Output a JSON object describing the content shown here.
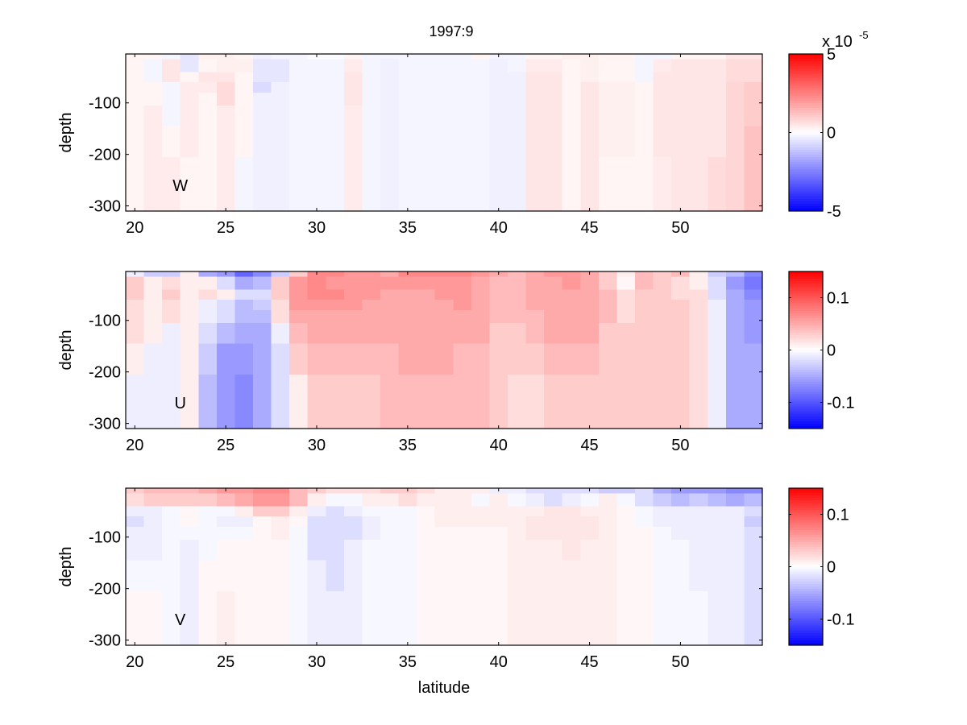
{
  "chart_data": {
    "type": "heatmap",
    "title": "1997:9",
    "xlabel": "latitude",
    "latitudes": [
      20,
      21,
      22,
      23,
      24,
      25,
      26,
      27,
      28,
      29,
      30,
      31,
      32,
      33,
      34,
      35,
      36,
      37,
      38,
      39,
      40,
      41,
      42,
      43,
      44,
      45,
      46,
      47,
      48,
      49,
      50,
      51,
      52,
      53,
      54
    ],
    "depth_edges": [
      -5,
      -15,
      -40,
      -60,
      -80,
      -105,
      -145,
      -205,
      -310
    ],
    "colormap": {
      "negative": "#0000ff",
      "zero": "#ffffff",
      "positive": "#ff0000"
    },
    "panels": [
      {
        "name": "W",
        "ylabel": "depth",
        "annotation": "W",
        "xlim": [
          19.5,
          54.5
        ],
        "ylim": [
          -310,
          -5
        ],
        "xticks": [
          "20",
          "25",
          "30",
          "35",
          "40",
          "45",
          "50"
        ],
        "yticks": [
          "-100",
          "-200",
          "-300"
        ],
        "clim": [
          -5,
          5
        ],
        "colorbar_ticks": [
          "5",
          "0",
          "-5"
        ],
        "colorbar_multiplier": "x 10",
        "colorbar_exponent": "-5",
        "values": [
          [
            0.2,
            0.2,
            -0.2,
            -0.5,
            0.3,
            0.3,
            0.2,
            -0.3,
            -0.2,
            -0.2,
            -0.1,
            -0.1,
            0.2,
            -0.2,
            -0.2,
            -0.2,
            -0.2,
            -0.2,
            -0.2,
            0.2,
            -0.2,
            -0.2,
            0.2,
            0.2,
            0.3,
            0.3,
            0.2,
            0.2,
            -0.2,
            -0.2,
            0.2,
            0.2,
            0.2,
            0.5,
            0.5
          ],
          [
            0.2,
            -0.2,
            0.5,
            -0.5,
            0.2,
            0.3,
            0.3,
            -0.5,
            -0.5,
            -0.2,
            -0.2,
            -0.2,
            0.4,
            -0.2,
            -0.3,
            -0.2,
            -0.2,
            -0.2,
            -0.2,
            -0.2,
            -0.3,
            -0.2,
            0.4,
            0.4,
            0.2,
            0.3,
            0.2,
            0.2,
            -0.2,
            0.4,
            0.5,
            0.5,
            0.5,
            0.7,
            0.7
          ],
          [
            0.2,
            -0.2,
            0.5,
            0.2,
            0.5,
            0.5,
            0.2,
            -0.5,
            -0.5,
            -0.2,
            -0.2,
            -0.2,
            0.5,
            -0.2,
            -0.3,
            -0.2,
            -0.2,
            -0.2,
            -0.2,
            -0.2,
            -0.3,
            -0.3,
            0.5,
            0.5,
            0.2,
            0.3,
            0.2,
            0.2,
            -0.2,
            0.5,
            0.5,
            0.5,
            0.5,
            0.7,
            0.7
          ],
          [
            0.2,
            0.2,
            -0.2,
            0.4,
            0.4,
            0.7,
            0.2,
            -0.7,
            -0.3,
            -0.2,
            -0.2,
            -0.2,
            0.5,
            -0.2,
            -0.3,
            -0.2,
            -0.2,
            -0.2,
            -0.2,
            -0.2,
            -0.3,
            -0.3,
            0.5,
            0.5,
            0.2,
            0.5,
            0.3,
            0.3,
            0.2,
            0.5,
            0.5,
            0.5,
            0.5,
            0.8,
            1.0
          ],
          [
            0.2,
            0.2,
            -0.2,
            0.4,
            0.2,
            0.7,
            0.2,
            -0.3,
            -0.3,
            -0.2,
            -0.2,
            -0.2,
            0.5,
            -0.2,
            -0.3,
            -0.2,
            -0.2,
            -0.2,
            -0.2,
            -0.2,
            -0.3,
            -0.3,
            0.5,
            0.5,
            0.2,
            0.5,
            0.3,
            0.3,
            0.2,
            0.5,
            0.5,
            0.5,
            0.5,
            0.8,
            1.0
          ],
          [
            0.2,
            0.4,
            -0.2,
            0.4,
            0.2,
            0.4,
            0.2,
            -0.3,
            -0.3,
            -0.2,
            -0.2,
            -0.2,
            0.4,
            -0.2,
            -0.3,
            -0.2,
            -0.2,
            -0.2,
            -0.2,
            -0.2,
            -0.3,
            -0.3,
            0.5,
            0.5,
            0.2,
            0.5,
            0.3,
            0.3,
            0.2,
            0.5,
            0.5,
            0.5,
            0.5,
            0.8,
            1.0
          ],
          [
            0.2,
            0.4,
            0.2,
            0.4,
            0.2,
            0.4,
            0.2,
            -0.3,
            -0.3,
            -0.2,
            -0.2,
            -0.2,
            0.4,
            -0.2,
            -0.3,
            -0.2,
            -0.2,
            -0.2,
            -0.2,
            -0.2,
            -0.3,
            -0.3,
            0.5,
            0.5,
            0.2,
            0.5,
            0.3,
            0.3,
            0.2,
            0.5,
            0.5,
            0.5,
            0.5,
            0.8,
            1.2
          ],
          [
            0.2,
            0.4,
            0.4,
            0.2,
            0.2,
            0.4,
            -0.2,
            -0.3,
            -0.3,
            -0.2,
            -0.2,
            -0.2,
            0.4,
            -0.2,
            -0.3,
            -0.2,
            -0.2,
            -0.2,
            -0.2,
            -0.2,
            -0.3,
            -0.3,
            0.5,
            0.5,
            0.2,
            0.5,
            0.2,
            0.2,
            0.2,
            0.4,
            0.5,
            0.5,
            0.7,
            0.8,
            1.2
          ]
        ]
      },
      {
        "name": "U",
        "ylabel": "depth",
        "annotation": "U",
        "xlim": [
          19.5,
          54.5
        ],
        "ylim": [
          -310,
          -5
        ],
        "xticks": [
          "20",
          "25",
          "30",
          "35",
          "40",
          "45",
          "50"
        ],
        "yticks": [
          "-100",
          "-200",
          "-300"
        ],
        "clim": [
          -0.15,
          0.15
        ],
        "colorbar_ticks": [
          "0.1",
          "0",
          "-0.1"
        ],
        "values": [
          [
            -0.01,
            -0.03,
            -0.03,
            0.01,
            -0.05,
            -0.06,
            -0.09,
            -0.07,
            -0.03,
            0.03,
            0.07,
            0.07,
            0.06,
            0.06,
            0.05,
            0.07,
            0.07,
            0.07,
            0.07,
            0.06,
            0.05,
            0.04,
            0.05,
            0.06,
            0.06,
            0.05,
            0.03,
            0.01,
            0.04,
            0.03,
            0.04,
            0.01,
            -0.03,
            -0.04,
            -0.07
          ],
          [
            0.03,
            0.01,
            0.02,
            0.01,
            0.01,
            -0.02,
            -0.05,
            -0.04,
            0.03,
            0.06,
            0.07,
            0.06,
            0.06,
            0.06,
            0.06,
            0.06,
            0.06,
            0.06,
            0.06,
            0.05,
            0.04,
            0.04,
            0.05,
            0.05,
            0.06,
            0.05,
            0.03,
            0.005,
            0.04,
            0.03,
            0.02,
            0.01,
            -0.02,
            -0.06,
            -0.08
          ],
          [
            0.03,
            0.01,
            0.03,
            0.01,
            0.02,
            0.01,
            -0.02,
            -0.02,
            0.03,
            0.06,
            0.07,
            0.07,
            0.06,
            0.06,
            0.05,
            0.05,
            0.05,
            0.06,
            0.06,
            0.05,
            0.04,
            0.04,
            0.05,
            0.05,
            0.05,
            0.05,
            0.04,
            0.02,
            0.03,
            0.03,
            0.02,
            0.02,
            -0.02,
            -0.05,
            -0.07
          ],
          [
            0.02,
            0.01,
            0.02,
            0.01,
            -0.01,
            -0.02,
            -0.04,
            -0.03,
            0.02,
            0.06,
            0.06,
            0.06,
            0.06,
            0.05,
            0.05,
            0.05,
            0.05,
            0.05,
            0.06,
            0.05,
            0.04,
            0.04,
            0.05,
            0.05,
            0.05,
            0.05,
            0.04,
            0.02,
            0.03,
            0.03,
            0.03,
            0.02,
            -0.01,
            -0.05,
            -0.06
          ],
          [
            0.02,
            0.01,
            0.02,
            0.01,
            -0.01,
            -0.02,
            -0.04,
            -0.04,
            0.02,
            0.05,
            0.05,
            0.05,
            0.05,
            0.05,
            0.05,
            0.05,
            0.05,
            0.05,
            0.05,
            0.05,
            0.04,
            0.04,
            0.04,
            0.05,
            0.05,
            0.05,
            0.04,
            0.02,
            0.03,
            0.03,
            0.03,
            0.02,
            -0.01,
            -0.05,
            -0.06
          ],
          [
            0.02,
            0.01,
            -0.01,
            0.01,
            -0.02,
            -0.04,
            -0.05,
            -0.05,
            -0.01,
            0.04,
            0.05,
            0.05,
            0.05,
            0.05,
            0.05,
            0.05,
            0.05,
            0.05,
            0.05,
            0.05,
            0.03,
            0.03,
            0.04,
            0.05,
            0.05,
            0.05,
            0.03,
            0.03,
            0.03,
            0.03,
            0.03,
            0.02,
            -0.01,
            -0.05,
            -0.06
          ],
          [
            0.01,
            -0.01,
            -0.01,
            0.01,
            -0.03,
            -0.06,
            -0.06,
            -0.05,
            -0.02,
            0.03,
            0.04,
            0.04,
            0.04,
            0.04,
            0.04,
            0.05,
            0.05,
            0.05,
            0.04,
            0.04,
            0.03,
            0.03,
            0.03,
            0.04,
            0.04,
            0.04,
            0.03,
            0.03,
            0.03,
            0.03,
            0.03,
            0.02,
            -0.01,
            -0.05,
            -0.05
          ],
          [
            -0.01,
            -0.01,
            -0.01,
            0.01,
            -0.04,
            -0.06,
            -0.07,
            -0.05,
            -0.02,
            0.01,
            0.03,
            0.03,
            0.03,
            0.03,
            0.04,
            0.04,
            0.04,
            0.04,
            0.04,
            0.04,
            0.03,
            0.02,
            0.02,
            0.03,
            0.03,
            0.03,
            0.03,
            0.03,
            0.03,
            0.03,
            0.03,
            0.02,
            -0.01,
            -0.05,
            -0.05
          ]
        ]
      },
      {
        "name": "V",
        "ylabel": "depth",
        "annotation": "V",
        "xlim": [
          19.5,
          54.5
        ],
        "ylim": [
          -310,
          -5
        ],
        "xticks": [
          "20",
          "25",
          "30",
          "35",
          "40",
          "45",
          "50"
        ],
        "yticks": [
          "-100",
          "-200",
          "-300"
        ],
        "clim": [
          -0.15,
          0.15
        ],
        "colorbar_ticks": [
          "0.1",
          "0",
          "-0.1"
        ],
        "values": [
          [
            0.03,
            0.04,
            0.04,
            0.04,
            0.05,
            0.06,
            0.06,
            0.07,
            0.07,
            0.04,
            0.03,
            0.02,
            0.02,
            0.02,
            0.03,
            0.03,
            0.02,
            0.01,
            0.01,
            0.01,
            -0.01,
            -0.01,
            -0.02,
            -0.02,
            -0.02,
            -0.02,
            -0.03,
            -0.03,
            -0.02,
            -0.05,
            -0.06,
            -0.06,
            -0.06,
            -0.07,
            -0.07
          ],
          [
            0.02,
            0.03,
            0.03,
            0.03,
            0.03,
            0.04,
            0.05,
            0.06,
            0.06,
            0.04,
            0.01,
            -0.005,
            -0.005,
            0.01,
            0.01,
            0.02,
            0.01,
            0.01,
            0.01,
            -0.005,
            0.01,
            -0.005,
            -0.01,
            -0.02,
            -0.01,
            -0.005,
            0.01,
            -0.005,
            -0.02,
            -0.03,
            -0.04,
            -0.03,
            -0.04,
            -0.05,
            -0.04
          ],
          [
            -0.01,
            -0.01,
            -0.005,
            0.005,
            -0.005,
            -0.005,
            0.01,
            0.03,
            0.03,
            0.01,
            -0.01,
            -0.02,
            -0.01,
            -0.005,
            -0.005,
            -0.005,
            0.005,
            0.01,
            0.01,
            0.01,
            0.01,
            0.01,
            0.01,
            0.015,
            0.015,
            0.01,
            0.01,
            0.005,
            -0.005,
            -0.01,
            -0.01,
            -0.01,
            -0.01,
            -0.01,
            -0.02
          ],
          [
            -0.02,
            -0.01,
            -0.005,
            0.005,
            -0.005,
            -0.01,
            -0.01,
            0.005,
            0.01,
            0.005,
            -0.02,
            -0.02,
            -0.02,
            -0.01,
            -0.005,
            -0.005,
            0.005,
            0.01,
            0.01,
            0.01,
            0.01,
            0.01,
            0.015,
            0.015,
            0.015,
            0.015,
            0.01,
            0.005,
            -0.005,
            -0.01,
            -0.01,
            -0.01,
            -0.01,
            -0.01,
            -0.03
          ],
          [
            -0.01,
            -0.01,
            -0.005,
            -0.005,
            -0.005,
            -0.005,
            -0.005,
            0.005,
            0.01,
            -0.005,
            -0.02,
            -0.02,
            -0.02,
            -0.01,
            -0.005,
            -0.005,
            0.005,
            0.005,
            0.005,
            0.005,
            0.005,
            0.01,
            0.015,
            0.015,
            0.015,
            0.015,
            0.01,
            0.005,
            0.005,
            -0.005,
            -0.01,
            -0.01,
            -0.01,
            -0.01,
            -0.02
          ],
          [
            -0.01,
            -0.01,
            -0.005,
            -0.01,
            -0.005,
            0.005,
            0.005,
            0.005,
            0.005,
            -0.005,
            -0.02,
            -0.02,
            -0.01,
            -0.005,
            -0.005,
            -0.005,
            0.005,
            0.005,
            0.005,
            0.005,
            0.005,
            0.01,
            0.01,
            0.01,
            0.015,
            0.01,
            0.01,
            0.005,
            0.005,
            -0.005,
            -0.005,
            -0.01,
            -0.01,
            -0.01,
            -0.02
          ],
          [
            -0.005,
            -0.005,
            -0.005,
            -0.01,
            0.005,
            0.005,
            0.005,
            0.005,
            0.005,
            -0.005,
            -0.01,
            -0.02,
            -0.01,
            -0.005,
            -0.005,
            -0.005,
            0.005,
            0.005,
            0.005,
            0.005,
            0.005,
            0.01,
            0.01,
            0.01,
            0.01,
            0.01,
            0.01,
            0.005,
            0.005,
            -0.005,
            -0.005,
            -0.01,
            -0.01,
            -0.01,
            -0.02
          ],
          [
            0.005,
            0.005,
            -0.005,
            -0.01,
            0.005,
            0.01,
            0.005,
            0.005,
            0.005,
            -0.005,
            -0.01,
            -0.01,
            -0.01,
            -0.005,
            -0.005,
            -0.005,
            0.005,
            0.005,
            0.005,
            0.005,
            0.005,
            0.01,
            0.01,
            0.01,
            0.01,
            0.01,
            0.01,
            0.005,
            0.005,
            -0.005,
            -0.005,
            -0.005,
            -0.01,
            -0.01,
            -0.02
          ]
        ]
      }
    ]
  }
}
